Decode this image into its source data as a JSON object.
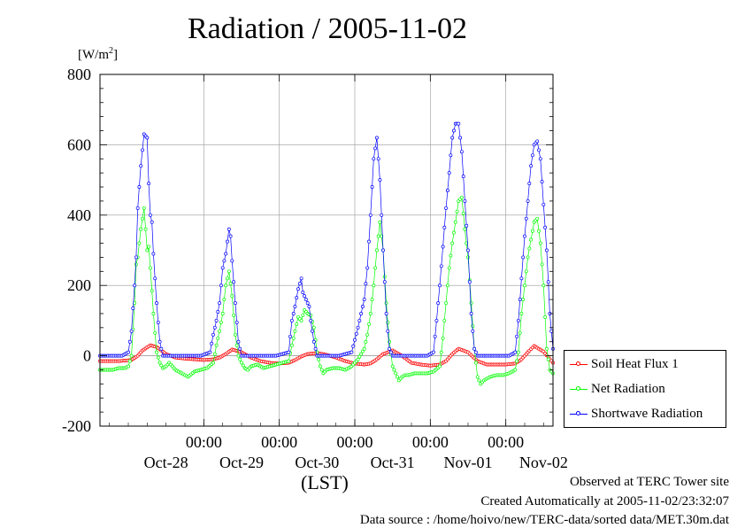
{
  "chart_data": {
    "type": "line",
    "title": "Radiation / 2005-11-02",
    "y_unit_text": "[W/m",
    "y_unit_exponent": "2",
    "y_unit_close": "]",
    "xlabel": "(LST)",
    "ylim": [
      -200,
      800
    ],
    "yticks": [
      "800",
      "600",
      "400",
      "200",
      "0",
      "-200"
    ],
    "ytick_values": [
      800,
      600,
      400,
      200,
      0,
      -200
    ],
    "x_range_hours": [
      0,
      144
    ],
    "x_start_date": "2005-10-27 15:00 LST",
    "xticks_time": [
      "00:00",
      "00:00",
      "00:00",
      "00:00",
      "00:00"
    ],
    "xticks_time_hours": [
      33,
      57,
      81,
      105,
      129
    ],
    "xticks_date": [
      "Oct-28",
      "Oct-29",
      "Oct-30",
      "Oct-31",
      "Nov-01",
      "Nov-02"
    ],
    "xticks_date_hours": [
      21,
      45,
      69,
      93,
      117,
      141
    ],
    "grid": true,
    "legend_position": "right-bottom",
    "series": [
      {
        "name": "Soil Heat Flux 1",
        "color": "#ff0000",
        "x": [
          0,
          6,
          10,
          12,
          13.5,
          16,
          18,
          21,
          24,
          27,
          30,
          33,
          36,
          38,
          40,
          42,
          45,
          48,
          51,
          54,
          57,
          60,
          62,
          64,
          66,
          69,
          72,
          75,
          78,
          81,
          84,
          86,
          88,
          90,
          93,
          96,
          99,
          102,
          105,
          108,
          110,
          112,
          114,
          117,
          120,
          123,
          126,
          129,
          132,
          134,
          136,
          138,
          141,
          144
        ],
        "values": [
          -15,
          -15,
          -12,
          0,
          15,
          30,
          25,
          5,
          -5,
          -8,
          -10,
          -12,
          -10,
          -5,
          5,
          18,
          10,
          -5,
          -15,
          -20,
          -22,
          -20,
          -12,
          -2,
          5,
          8,
          3,
          -5,
          -15,
          -22,
          -25,
          -22,
          -10,
          5,
          15,
          0,
          -20,
          -25,
          -28,
          -25,
          -15,
          5,
          20,
          10,
          -15,
          -25,
          -25,
          -25,
          -22,
          -10,
          10,
          28,
          12,
          -20
        ]
      },
      {
        "name": "Net Radiation",
        "color": "#00ff00",
        "x": [
          0,
          4,
          6,
          8,
          9,
          10,
          11,
          11.5,
          12,
          13,
          14,
          15,
          15.5,
          16,
          17,
          18,
          19,
          20,
          21,
          22,
          24,
          26,
          28,
          30,
          32,
          34,
          36,
          37,
          38,
          39,
          40,
          41,
          42,
          43,
          44,
          45,
          46,
          47,
          48,
          50,
          52,
          54,
          56,
          58,
          60,
          61,
          62,
          63,
          64,
          65,
          66,
          67,
          68,
          69,
          70,
          71,
          72,
          74,
          76,
          78,
          80,
          82,
          84,
          85,
          86,
          87,
          88,
          89,
          90,
          91,
          92,
          93,
          94,
          95,
          96,
          97,
          98,
          100,
          102,
          104,
          106,
          108,
          109,
          110,
          111,
          112,
          113,
          114,
          115,
          116,
          117,
          118,
          119,
          120,
          121,
          122,
          124,
          126,
          128,
          130,
          132,
          133,
          134,
          135,
          136,
          137,
          138,
          139,
          140,
          141,
          142,
          143,
          144
        ],
        "values": [
          -40,
          -40,
          -35,
          -35,
          -30,
          0,
          150,
          260,
          280,
          360,
          420,
          300,
          310,
          250,
          120,
          10,
          -20,
          -35,
          -30,
          -20,
          -40,
          -50,
          -60,
          -45,
          -40,
          -35,
          -20,
          30,
          70,
          120,
          200,
          240,
          170,
          60,
          0,
          -20,
          -35,
          -40,
          -30,
          -25,
          -35,
          -30,
          -25,
          -20,
          -15,
          30,
          70,
          110,
          100,
          130,
          120,
          115,
          80,
          10,
          -30,
          -50,
          -40,
          -35,
          -35,
          -40,
          -30,
          -10,
          20,
          60,
          120,
          200,
          300,
          380,
          300,
          150,
          40,
          -30,
          -50,
          -70,
          -60,
          -55,
          -55,
          -50,
          -50,
          -50,
          -45,
          -30,
          50,
          150,
          250,
          320,
          380,
          440,
          450,
          360,
          280,
          150,
          20,
          -60,
          -80,
          -70,
          -60,
          -55,
          -55,
          -50,
          -40,
          10,
          120,
          200,
          280,
          330,
          380,
          390,
          320,
          200,
          20,
          -40,
          -50
        ]
      },
      {
        "name": "Shortwave Radiation",
        "color": "#0000ff",
        "x": [
          0,
          4,
          7,
          8,
          9,
          10,
          11,
          11.5,
          12,
          13,
          14,
          15,
          15.5,
          16,
          16.5,
          17,
          18,
          19,
          20,
          24,
          28,
          32,
          35,
          36,
          37,
          38,
          39,
          40,
          41,
          41.5,
          42,
          43,
          44,
          45,
          46,
          48,
          52,
          56,
          60,
          61,
          62,
          63,
          64,
          64.5,
          65,
          66,
          66.5,
          67,
          68,
          69,
          70,
          72,
          76,
          80,
          82,
          83,
          84,
          85,
          86,
          87,
          88,
          89,
          90,
          91,
          92,
          93,
          94,
          96,
          100,
          104,
          106,
          107,
          108,
          109,
          110,
          111,
          112,
          113,
          114,
          115,
          116,
          117,
          118,
          119,
          120,
          122,
          126,
          130,
          132,
          133,
          134,
          135,
          136,
          137,
          138,
          139,
          140,
          141,
          142,
          143,
          144
        ],
        "values": [
          0,
          0,
          0,
          5,
          10,
          70,
          200,
          280,
          420,
          540,
          630,
          620,
          490,
          400,
          380,
          290,
          150,
          40,
          0,
          0,
          0,
          0,
          10,
          60,
          100,
          150,
          250,
          290,
          360,
          340,
          270,
          150,
          40,
          0,
          0,
          0,
          0,
          0,
          10,
          100,
          140,
          190,
          220,
          180,
          170,
          150,
          140,
          100,
          40,
          0,
          0,
          0,
          0,
          10,
          80,
          120,
          160,
          250,
          400,
          560,
          620,
          500,
          300,
          120,
          20,
          0,
          0,
          0,
          0,
          0,
          10,
          100,
          200,
          310,
          420,
          520,
          620,
          660,
          660,
          580,
          440,
          300,
          120,
          20,
          0,
          0,
          0,
          0,
          10,
          100,
          220,
          340,
          440,
          540,
          600,
          610,
          560,
          430,
          300,
          120,
          20
        ]
      }
    ]
  },
  "footer": {
    "line1": "Observed at TERC Tower site",
    "line2": "Created Automatically at 2005-11-02/23:32:07",
    "line3": "Data source : /home/hoivo/new/TERC-data/sorted  data/MET.30m.dat"
  }
}
